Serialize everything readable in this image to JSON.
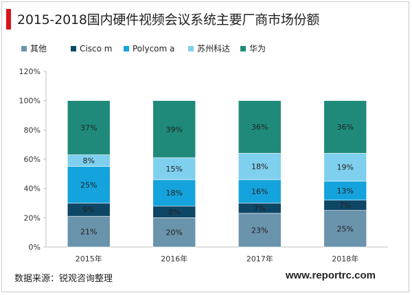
{
  "title": "2015-2018国内硬件视频会议系统主要厂商市场份额",
  "footer": {
    "source": "数据来源：锐观咨询整理",
    "url": "www.reportrc.com"
  },
  "colors": {
    "title_bar": "#d7141a",
    "其他": "#6a93ac",
    "Cisco m": "#0e4766",
    "Polycom a": "#14a3dc",
    "苏州科达": "#7fcfef",
    "华为": "#1f8a7a"
  },
  "chart_data": {
    "type": "bar",
    "stacked": true,
    "categories": [
      "2015年",
      "2016年",
      "2017年",
      "2018年"
    ],
    "series": [
      {
        "name": "其他",
        "values": [
          21,
          20,
          23,
          25
        ]
      },
      {
        "name": "Cisco m",
        "values": [
          9,
          8,
          7,
          7
        ]
      },
      {
        "name": "Polycom a",
        "values": [
          25,
          18,
          16,
          13
        ]
      },
      {
        "name": "苏州科达",
        "values": [
          8,
          15,
          18,
          19
        ]
      },
      {
        "name": "华为",
        "values": [
          37,
          39,
          36,
          36
        ]
      }
    ],
    "ylim": [
      0,
      120
    ],
    "yticks": [
      "0%",
      "20%",
      "40%",
      "60%",
      "80%",
      "100%",
      "120%"
    ],
    "value_suffix": "%",
    "legend_position": "top-left",
    "grid": false
  }
}
